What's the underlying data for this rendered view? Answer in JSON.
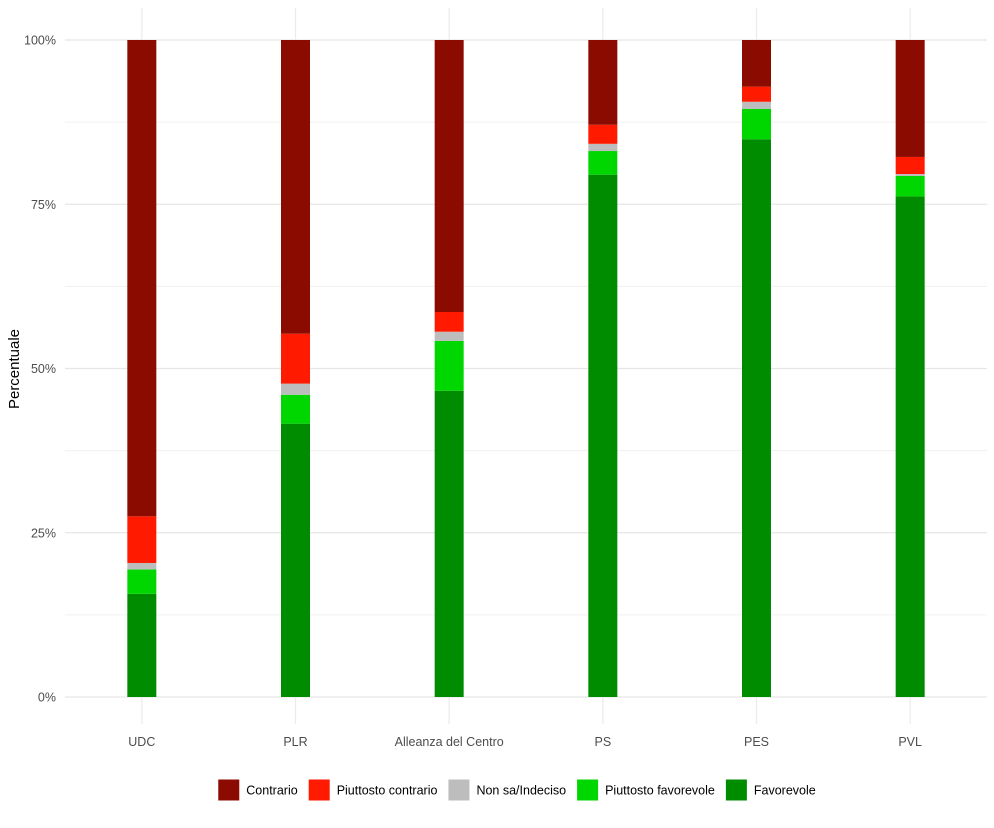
{
  "chart_data": {
    "type": "bar",
    "stacked": true,
    "orientation": "vertical",
    "title": "",
    "xlabel": "",
    "ylabel": "Percentuale",
    "ylim": [
      0,
      100
    ],
    "y_ticks": [
      "0%",
      "25%",
      "50%",
      "75%",
      "100%"
    ],
    "grid": true,
    "legend_position": "bottom",
    "categories": [
      "UDC",
      "PLR",
      "Alleanza del Centro",
      "PS",
      "PES",
      "PVL"
    ],
    "series": [
      {
        "name": "Favorevole",
        "color": "#008c00",
        "values": [
          15.7,
          41.6,
          46.6,
          79.5,
          84.9,
          76.2
        ]
      },
      {
        "name": "Piuttosto favorevole",
        "color": "#00d600",
        "values": [
          3.7,
          4.4,
          7.6,
          3.6,
          4.6,
          3.1
        ]
      },
      {
        "name": "Non sa/Indeciso",
        "color": "#bdbdbd",
        "values": [
          1.0,
          1.7,
          1.4,
          1.1,
          1.1,
          0.3
        ]
      },
      {
        "name": "Piuttosto contrario",
        "color": "#ff1a00",
        "values": [
          7.1,
          7.6,
          3.0,
          2.9,
          2.3,
          2.6
        ]
      },
      {
        "name": "Contrario",
        "color": "#8b0b00",
        "values": [
          72.5,
          44.7,
          41.4,
          12.9,
          7.1,
          17.8
        ]
      }
    ],
    "legend_order": [
      "Contrario",
      "Piuttosto contrario",
      "Non sa/Indeciso",
      "Piuttosto favorevole",
      "Favorevole"
    ]
  }
}
